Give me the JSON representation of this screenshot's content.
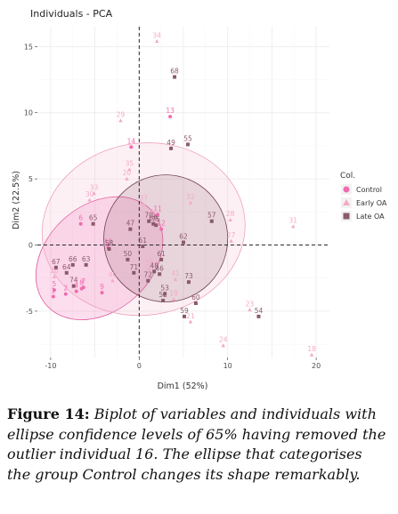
{
  "chart_data": {
    "type": "scatter",
    "title": "Individuals - PCA",
    "xlabel": "Dim1 (52%)",
    "ylabel": "Dim2 (22.5%)",
    "xlim": [
      -11.5,
      21.5
    ],
    "ylim": [
      -8.5,
      16.5
    ],
    "x_ticks": [
      -10,
      0,
      10,
      20
    ],
    "y_ticks": [
      -5,
      0,
      5,
      10,
      15
    ],
    "x_tick_labels": [
      "-10",
      "0",
      "10",
      "20"
    ],
    "y_tick_labels": [
      "-5",
      "0",
      "5",
      "10",
      "15"
    ],
    "legend": {
      "title": "Col.",
      "position": "right",
      "entries": [
        {
          "label": "Control",
          "color": "#f06bb0",
          "marker": "circle"
        },
        {
          "label": "Early OA",
          "color": "#f4aac7",
          "marker": "triangle"
        },
        {
          "label": "Late OA",
          "color": "#8a5a6c",
          "marker": "square"
        }
      ]
    },
    "ellipses": [
      {
        "group": "Control",
        "center": [
          -4.5,
          -1.0
        ],
        "semi_axes": [
          8.0,
          4.0
        ],
        "angle_deg": 42,
        "fill": "#f06bb0",
        "fill_opacity": 0.22,
        "stroke": "#e0559a"
      },
      {
        "group": "Early OA",
        "center": [
          0.5,
          1.2
        ],
        "semi_axes": [
          11.5,
          6.5
        ],
        "angle_deg": 8,
        "fill": "#f4aac7",
        "fill_opacity": 0.18,
        "stroke": "#efa3bf"
      },
      {
        "group": "Late OA",
        "center": [
          3.0,
          0.5
        ],
        "semi_axes": [
          7.0,
          4.8
        ],
        "angle_deg": 0,
        "fill": "#8a5a6c",
        "fill_opacity": 0.18,
        "stroke": "#6e4050"
      }
    ],
    "series": [
      {
        "name": "Control",
        "points": [
          {
            "label": "13",
            "x": 3.5,
            "y": 9.7
          },
          {
            "label": "14",
            "x": -0.9,
            "y": 7.4
          },
          {
            "label": "1",
            "x": -9.7,
            "y": -3.9
          },
          {
            "label": "2",
            "x": -8.3,
            "y": -3.7
          },
          {
            "label": "5",
            "x": -9.6,
            "y": -3.4
          },
          {
            "label": "7",
            "x": -6.3,
            "y": -3.2
          },
          {
            "label": "8",
            "x": -6.5,
            "y": -3.3
          },
          {
            "label": "9",
            "x": -4.2,
            "y": -3.6
          },
          {
            "label": "11",
            "x": 2.1,
            "y": 2.3
          },
          {
            "label": "4",
            "x": -7.1,
            "y": -3.5
          },
          {
            "label": "6",
            "x": -6.6,
            "y": 1.6
          },
          {
            "label": "10",
            "x": -3.5,
            "y": -0.2
          },
          {
            "label": "12",
            "x": 2.5,
            "y": 1.2
          }
        ]
      },
      {
        "name": "Early OA",
        "points": [
          {
            "label": "34",
            "x": 2.0,
            "y": 15.4
          },
          {
            "label": "29",
            "x": -2.1,
            "y": 9.4
          },
          {
            "label": "35",
            "x": -1.1,
            "y": 5.7
          },
          {
            "label": "20",
            "x": -1.4,
            "y": 5.0
          },
          {
            "label": "33",
            "x": -5.1,
            "y": 3.9
          },
          {
            "label": "30",
            "x": -5.6,
            "y": 3.4
          },
          {
            "label": "32",
            "x": 5.8,
            "y": 3.2
          },
          {
            "label": "37",
            "x": 0.5,
            "y": 3.1
          },
          {
            "label": "36",
            "x": 1.6,
            "y": 2.1
          },
          {
            "label": "28",
            "x": 10.3,
            "y": 1.9
          },
          {
            "label": "31",
            "x": 17.4,
            "y": 1.4
          },
          {
            "label": "27",
            "x": 10.4,
            "y": 0.3
          },
          {
            "label": "26",
            "x": -9.6,
            "y": -2.4
          },
          {
            "label": "40",
            "x": -3.0,
            "y": -2.7
          },
          {
            "label": "41",
            "x": 4.1,
            "y": -2.6
          },
          {
            "label": "39",
            "x": 1.1,
            "y": -1.8
          },
          {
            "label": "19",
            "x": 3.9,
            "y": -4.1
          },
          {
            "label": "21",
            "x": 5.8,
            "y": -5.8
          },
          {
            "label": "23",
            "x": 12.5,
            "y": -4.9
          },
          {
            "label": "24",
            "x": 9.5,
            "y": -7.6
          },
          {
            "label": "18",
            "x": 19.5,
            "y": -8.3
          }
        ]
      },
      {
        "name": "Late OA",
        "points": [
          {
            "label": "68",
            "x": 4.0,
            "y": 12.7
          },
          {
            "label": "55",
            "x": 5.5,
            "y": 7.6
          },
          {
            "label": "49",
            "x": 3.6,
            "y": 7.3
          },
          {
            "label": "57",
            "x": 8.2,
            "y": 1.8
          },
          {
            "label": "65",
            "x": -5.2,
            "y": 1.6
          },
          {
            "label": "47",
            "x": -1.0,
            "y": 1.2
          },
          {
            "label": "70",
            "x": 1.1,
            "y": 1.8
          },
          {
            "label": "69",
            "x": 1.6,
            "y": 1.6
          },
          {
            "label": "75",
            "x": 1.9,
            "y": 1.5
          },
          {
            "label": "62",
            "x": 5.0,
            "y": 0.2
          },
          {
            "label": "58",
            "x": -3.4,
            "y": -0.3
          },
          {
            "label": "50",
            "x": -1.3,
            "y": -1.1
          },
          {
            "label": "61",
            "x": 2.5,
            "y": -1.1
          },
          {
            "label": "67",
            "x": -9.4,
            "y": -1.7
          },
          {
            "label": "66",
            "x": -7.5,
            "y": -1.5
          },
          {
            "label": "63",
            "x": -6.0,
            "y": -1.5
          },
          {
            "label": "64",
            "x": -8.2,
            "y": -2.1
          },
          {
            "label": "71",
            "x": -0.6,
            "y": -2.1
          },
          {
            "label": "48",
            "x": 1.7,
            "y": -2.0
          },
          {
            "label": "46",
            "x": 2.3,
            "y": -2.2
          },
          {
            "label": "72",
            "x": 1.0,
            "y": -2.7
          },
          {
            "label": "74",
            "x": -7.4,
            "y": -3.1
          },
          {
            "label": "73",
            "x": 5.6,
            "y": -2.8
          },
          {
            "label": "53",
            "x": 2.9,
            "y": -3.7
          },
          {
            "label": "52",
            "x": 2.7,
            "y": -4.2
          },
          {
            "label": "60",
            "x": 6.4,
            "y": -4.4
          },
          {
            "label": "59",
            "x": 5.1,
            "y": -5.4
          },
          {
            "label": "54",
            "x": 13.5,
            "y": -5.4
          },
          {
            "label": "51",
            "x": 0.4,
            "y": -0.1
          }
        ]
      }
    ]
  },
  "caption": {
    "label": "Figure 14:",
    "text": "Biplot of variables and individuals with ellipse confidence levels of 65% having removed the outlier individual 16. The ellipse that categorises the group Control changes its shape remarkably."
  }
}
